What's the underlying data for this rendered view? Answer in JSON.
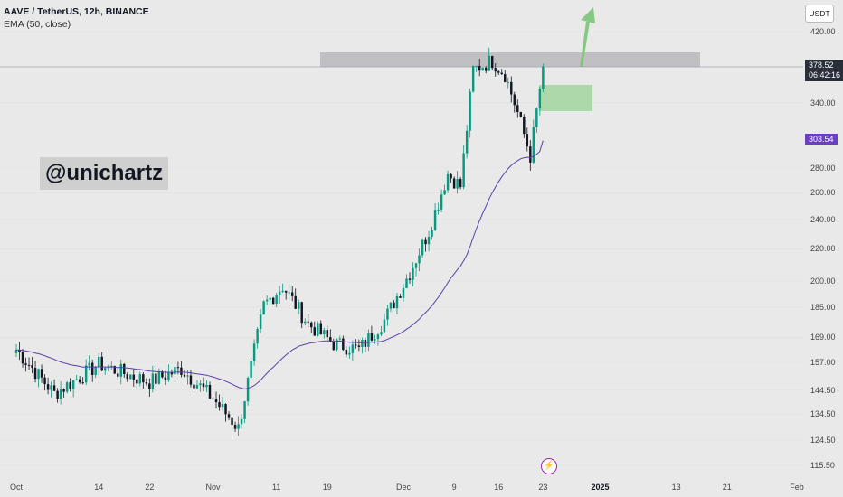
{
  "header": {
    "symbol": "AAVE / TetherUS, 12h, BINANCE",
    "indicator": "EMA (50, close)"
  },
  "watermark": "@unichartz",
  "currency_button": "USDT",
  "last_price": "378.52",
  "countdown": "06:42:16",
  "ema_value": "303.54",
  "colors": {
    "up": "#089981",
    "down": "#131722",
    "ema": "#5b3fa8",
    "resistance_zone": "#b8b8bc",
    "demand_zone": "#9ed59a",
    "arrow": "#7cc47a",
    "ema_tag": "#6a3fc1",
    "price_tag": "#2a2e39"
  },
  "chart_data": {
    "type": "candlestick",
    "title": "AAVE / TetherUS, 12h, BINANCE",
    "scale": "log",
    "y_ticks": [
      420.0,
      340.0,
      280.0,
      260.0,
      240.0,
      220.0,
      200.0,
      185.0,
      169.0,
      157.0,
      144.5,
      134.5,
      124.5,
      115.5
    ],
    "y_tick_labels": [
      "420.00",
      "340.00",
      "280.00",
      "260.00",
      "240.00",
      "220.00",
      "200.00",
      "185.00",
      "169.00",
      "157.00",
      "144.50",
      "134.50",
      "124.50",
      "115.50"
    ],
    "x_tick_labels": [
      "Oct",
      "14",
      "22",
      "Nov",
      "11",
      "19",
      "Dec",
      "9",
      "16",
      "23",
      "2025",
      "13",
      "21",
      "Feb"
    ],
    "x_tick_bold": [
      "2025"
    ],
    "key_points": [
      {
        "date": "2024-10-01",
        "close": 163
      },
      {
        "date": "2024-10-07",
        "close": 143
      },
      {
        "date": "2024-10-14",
        "close": 156
      },
      {
        "date": "2024-10-22",
        "close": 148
      },
      {
        "date": "2024-10-27",
        "close": 154
      },
      {
        "date": "2024-11-01",
        "close": 141
      },
      {
        "date": "2024-11-05",
        "close": 129
      },
      {
        "date": "2024-11-09",
        "close": 186
      },
      {
        "date": "2024-11-12",
        "close": 197
      },
      {
        "date": "2024-11-16",
        "close": 176
      },
      {
        "date": "2024-11-20",
        "close": 166
      },
      {
        "date": "2024-11-24",
        "close": 163
      },
      {
        "date": "2024-11-28",
        "close": 178
      },
      {
        "date": "2024-12-02",
        "close": 205
      },
      {
        "date": "2024-12-05",
        "close": 232
      },
      {
        "date": "2024-12-08",
        "close": 275
      },
      {
        "date": "2024-12-10",
        "close": 265
      },
      {
        "date": "2024-12-12",
        "close": 375
      },
      {
        "date": "2024-12-15",
        "close": 385
      },
      {
        "date": "2024-12-17",
        "close": 370
      },
      {
        "date": "2024-12-19",
        "close": 330
      },
      {
        "date": "2024-12-21",
        "close": 290
      },
      {
        "date": "2024-12-23",
        "close": 378.52
      }
    ],
    "ema_50_current": 303.54,
    "last_close": 378.52,
    "resistance_zone": {
      "low": 382,
      "high": 395
    },
    "demand_zone": {
      "low": 330,
      "high": 357
    },
    "projection": "arrow pointing up above 420"
  }
}
